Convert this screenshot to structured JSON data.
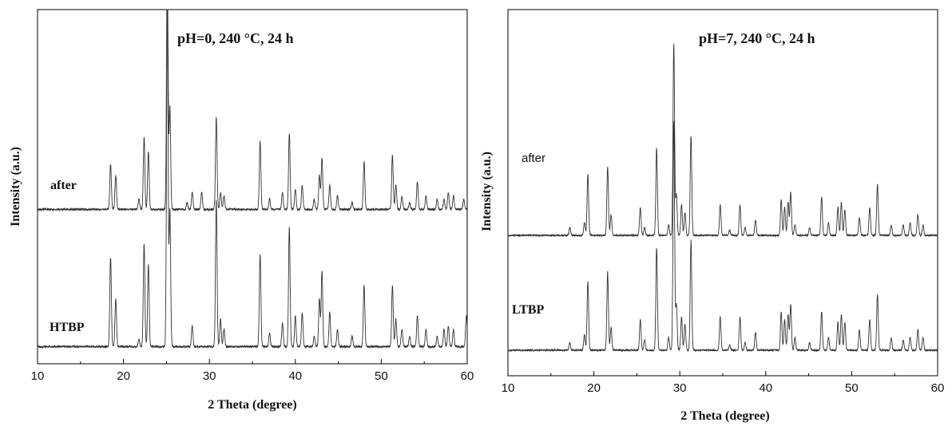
{
  "chart_data": [
    {
      "type": "line",
      "title": "pH=0, 240 °C, 24 h",
      "xlabel": "2 Theta (degree)",
      "ylabel": "Intensity (a.u.)",
      "xlim": [
        10,
        60
      ],
      "xticks": [
        10,
        20,
        30,
        40,
        50,
        60
      ],
      "grid": false,
      "y_scale": "arbitrary units, curves vertically offset",
      "series": [
        {
          "name": "after",
          "baseline": 0.45,
          "peaks": [
            [
              18.5,
              0.13
            ],
            [
              19.1,
              0.1
            ],
            [
              21.8,
              0.03
            ],
            [
              22.4,
              0.21
            ],
            [
              22.9,
              0.17
            ],
            [
              25.1,
              0.72
            ],
            [
              25.4,
              0.3
            ],
            [
              27.4,
              0.02
            ],
            [
              28.0,
              0.05
            ],
            [
              29.1,
              0.05
            ],
            [
              30.8,
              0.27
            ],
            [
              31.3,
              0.05
            ],
            [
              31.7,
              0.04
            ],
            [
              35.9,
              0.2
            ],
            [
              37.0,
              0.03
            ],
            [
              38.5,
              0.05
            ],
            [
              39.3,
              0.22
            ],
            [
              40.0,
              0.06
            ],
            [
              40.8,
              0.07
            ],
            [
              42.2,
              0.03
            ],
            [
              42.8,
              0.1
            ],
            [
              43.1,
              0.15
            ],
            [
              44.0,
              0.07
            ],
            [
              44.9,
              0.04
            ],
            [
              46.6,
              0.02
            ],
            [
              48.0,
              0.14
            ],
            [
              51.3,
              0.16
            ],
            [
              51.7,
              0.07
            ],
            [
              52.4,
              0.04
            ],
            [
              53.3,
              0.02
            ],
            [
              54.2,
              0.08
            ],
            [
              55.2,
              0.04
            ],
            [
              56.5,
              0.03
            ],
            [
              57.3,
              0.03
            ],
            [
              57.8,
              0.05
            ],
            [
              58.4,
              0.04
            ],
            [
              59.6,
              0.03
            ]
          ]
        },
        {
          "name": "HTBP",
          "baseline": 0.05,
          "peaks": [
            [
              18.5,
              0.26
            ],
            [
              19.1,
              0.14
            ],
            [
              21.8,
              0.02
            ],
            [
              22.4,
              0.3
            ],
            [
              22.9,
              0.24
            ],
            [
              25.1,
              1.0
            ],
            [
              25.4,
              0.4
            ],
            [
              28.0,
              0.06
            ],
            [
              30.8,
              0.43
            ],
            [
              31.3,
              0.08
            ],
            [
              31.7,
              0.05
            ],
            [
              35.9,
              0.27
            ],
            [
              37.0,
              0.04
            ],
            [
              38.5,
              0.07
            ],
            [
              39.3,
              0.35
            ],
            [
              40.0,
              0.09
            ],
            [
              40.8,
              0.1
            ],
            [
              42.2,
              0.03
            ],
            [
              42.8,
              0.14
            ],
            [
              43.1,
              0.22
            ],
            [
              44.0,
              0.1
            ],
            [
              44.9,
              0.05
            ],
            [
              46.6,
              0.03
            ],
            [
              48.0,
              0.18
            ],
            [
              51.3,
              0.18
            ],
            [
              51.7,
              0.08
            ],
            [
              52.4,
              0.05
            ],
            [
              53.3,
              0.03
            ],
            [
              54.2,
              0.09
            ],
            [
              55.2,
              0.05
            ],
            [
              56.5,
              0.03
            ],
            [
              57.3,
              0.05
            ],
            [
              57.8,
              0.06
            ],
            [
              58.4,
              0.05
            ],
            [
              59.9,
              0.09
            ]
          ]
        }
      ]
    },
    {
      "type": "line",
      "title": "pH=7, 240 °C, 24 h",
      "xlabel": "2 Theta (degree)",
      "ylabel": "Intensity (a.u.)",
      "xlim": [
        10,
        60
      ],
      "xticks": [
        10,
        20,
        30,
        40,
        50,
        60
      ],
      "grid": false,
      "y_scale": "arbitrary units, curves vertically offset",
      "series": [
        {
          "name": "after",
          "baseline": 0.55,
          "peaks": [
            [
              17.2,
              0.03
            ],
            [
              18.9,
              0.05
            ],
            [
              19.3,
              0.24
            ],
            [
              21.6,
              0.27
            ],
            [
              22.0,
              0.08
            ],
            [
              25.4,
              0.11
            ],
            [
              25.9,
              0.03
            ],
            [
              27.3,
              0.34
            ],
            [
              28.7,
              0.04
            ],
            [
              29.3,
              0.75
            ],
            [
              29.6,
              0.16
            ],
            [
              30.2,
              0.12
            ],
            [
              30.6,
              0.09
            ],
            [
              31.3,
              0.39
            ],
            [
              34.7,
              0.12
            ],
            [
              35.8,
              0.02
            ],
            [
              37.0,
              0.12
            ],
            [
              37.6,
              0.03
            ],
            [
              38.8,
              0.06
            ],
            [
              41.8,
              0.14
            ],
            [
              42.2,
              0.11
            ],
            [
              42.6,
              0.13
            ],
            [
              42.9,
              0.17
            ],
            [
              43.4,
              0.04
            ],
            [
              45.1,
              0.03
            ],
            [
              46.5,
              0.15
            ],
            [
              47.3,
              0.05
            ],
            [
              48.4,
              0.11
            ],
            [
              48.8,
              0.13
            ],
            [
              49.2,
              0.1
            ],
            [
              50.9,
              0.07
            ],
            [
              52.1,
              0.11
            ],
            [
              53.0,
              0.2
            ],
            [
              54.6,
              0.04
            ],
            [
              56.0,
              0.04
            ],
            [
              56.8,
              0.05
            ],
            [
              57.7,
              0.08
            ],
            [
              58.3,
              0.04
            ]
          ]
        },
        {
          "name": "LTBP",
          "baseline": 0.1,
          "peaks": [
            [
              17.2,
              0.03
            ],
            [
              18.9,
              0.06
            ],
            [
              19.3,
              0.27
            ],
            [
              21.6,
              0.31
            ],
            [
              22.0,
              0.09
            ],
            [
              25.4,
              0.12
            ],
            [
              25.9,
              0.04
            ],
            [
              27.3,
              0.4
            ],
            [
              28.7,
              0.05
            ],
            [
              29.3,
              0.9
            ],
            [
              29.6,
              0.18
            ],
            [
              30.2,
              0.13
            ],
            [
              30.6,
              0.1
            ],
            [
              31.3,
              0.43
            ],
            [
              34.7,
              0.13
            ],
            [
              35.8,
              0.02
            ],
            [
              37.0,
              0.13
            ],
            [
              37.6,
              0.03
            ],
            [
              38.8,
              0.07
            ],
            [
              41.8,
              0.15
            ],
            [
              42.2,
              0.12
            ],
            [
              42.6,
              0.14
            ],
            [
              42.9,
              0.18
            ],
            [
              43.4,
              0.05
            ],
            [
              45.1,
              0.03
            ],
            [
              46.5,
              0.15
            ],
            [
              47.3,
              0.05
            ],
            [
              48.4,
              0.11
            ],
            [
              48.8,
              0.14
            ],
            [
              49.2,
              0.11
            ],
            [
              50.9,
              0.08
            ],
            [
              52.1,
              0.12
            ],
            [
              53.0,
              0.22
            ],
            [
              54.6,
              0.05
            ],
            [
              56.0,
              0.04
            ],
            [
              56.8,
              0.05
            ],
            [
              57.7,
              0.08
            ],
            [
              58.3,
              0.05
            ]
          ]
        }
      ]
    }
  ]
}
